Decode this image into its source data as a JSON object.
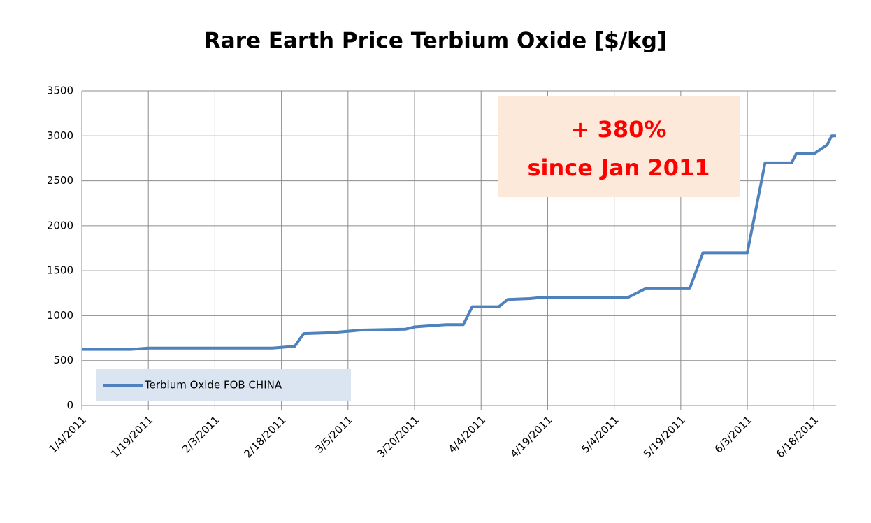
{
  "chart_data": {
    "type": "line",
    "title": "Rare Earth Price Terbium Oxide [$/kg]",
    "annotation": [
      "+ 380%",
      "since Jan 2011"
    ],
    "x": [
      "2011-01-04",
      "2011-01-15",
      "2011-01-19",
      "2011-02-16",
      "2011-02-21",
      "2011-02-23",
      "2011-03-01",
      "2011-03-08",
      "2011-03-18",
      "2011-03-20",
      "2011-03-27",
      "2011-03-31",
      "2011-04-02",
      "2011-04-08",
      "2011-04-10",
      "2011-04-15",
      "2011-04-17",
      "2011-05-07",
      "2011-05-11",
      "2011-05-21",
      "2011-05-24",
      "2011-06-03",
      "2011-06-07",
      "2011-06-13",
      "2011-06-14",
      "2011-06-18",
      "2011-06-21",
      "2011-06-22",
      "2011-06-23"
    ],
    "series": [
      {
        "name": "Terbium Oxide FOB CHINA",
        "color": "#4f81bd",
        "values": [
          625,
          625,
          640,
          640,
          660,
          800,
          810,
          840,
          850,
          875,
          900,
          900,
          1100,
          1100,
          1180,
          1190,
          1200,
          1200,
          1300,
          1300,
          1700,
          1700,
          2700,
          2700,
          2800,
          2800,
          2900,
          3000,
          3000
        ]
      }
    ],
    "xlim": [
      "2011-01-04",
      "2011-06-23"
    ],
    "xticks": [
      {
        "value": "2011-01-04",
        "label": "1/4/2011"
      },
      {
        "value": "2011-01-19",
        "label": "1/19/2011"
      },
      {
        "value": "2011-02-03",
        "label": "2/3/2011"
      },
      {
        "value": "2011-02-18",
        "label": "2/18/2011"
      },
      {
        "value": "2011-03-05",
        "label": "3/5/2011"
      },
      {
        "value": "2011-03-20",
        "label": "3/20/2011"
      },
      {
        "value": "2011-04-04",
        "label": "4/4/2011"
      },
      {
        "value": "2011-04-19",
        "label": "4/19/2011"
      },
      {
        "value": "2011-05-04",
        "label": "5/4/2011"
      },
      {
        "value": "2011-05-19",
        "label": "5/19/2011"
      },
      {
        "value": "2011-06-03",
        "label": "6/3/2011"
      },
      {
        "value": "2011-06-18",
        "label": "6/18/2011"
      }
    ],
    "ylim": [
      0,
      3500
    ],
    "yticks": [
      0,
      500,
      1000,
      1500,
      2000,
      2500,
      3000,
      3500
    ],
    "grid": true,
    "legend": "lower-left",
    "annotation_color": "#ff0000",
    "annotation_background": "#fde9d9"
  }
}
